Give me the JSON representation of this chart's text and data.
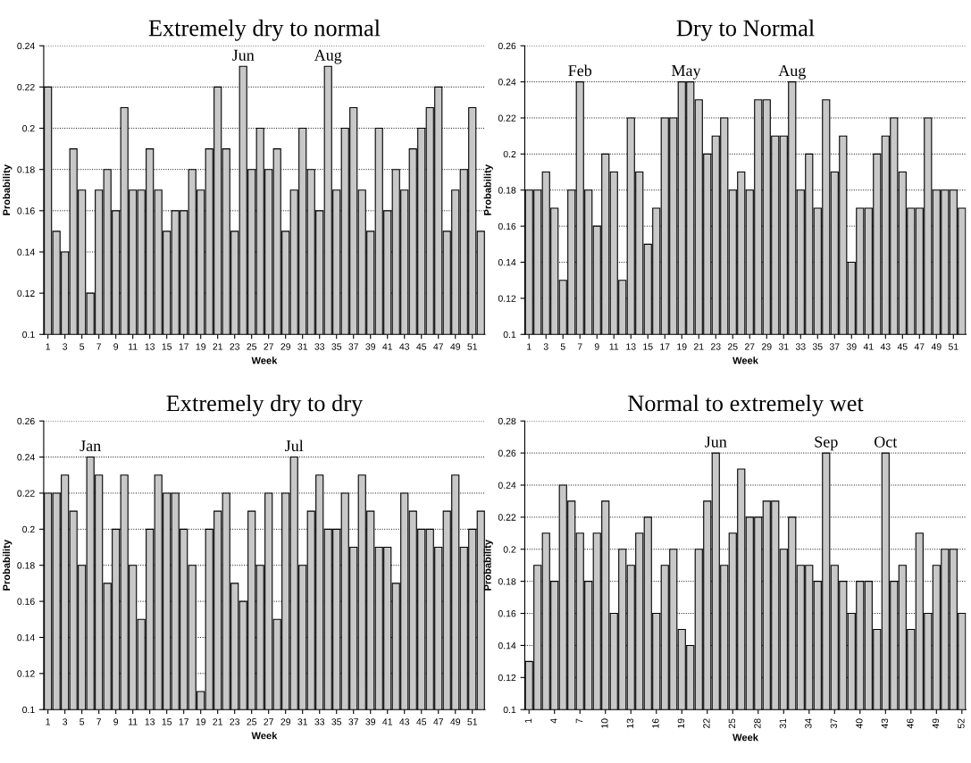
{
  "chart_data": [
    {
      "type": "bar",
      "title": "Extremely dry to normal",
      "xlabel": "Week",
      "ylabel": "Probability",
      "color": "#c8c8c8",
      "grid": "y",
      "x": [
        1,
        2,
        3,
        4,
        5,
        6,
        7,
        8,
        9,
        10,
        11,
        12,
        13,
        14,
        15,
        16,
        17,
        18,
        19,
        20,
        21,
        22,
        23,
        24,
        25,
        26,
        27,
        28,
        29,
        30,
        31,
        32,
        33,
        34,
        35,
        36,
        37,
        38,
        39,
        40,
        41,
        42,
        43,
        44,
        45,
        46,
        47,
        48,
        49,
        50,
        51,
        52
      ],
      "values": [
        0.22,
        0.15,
        0.14,
        0.19,
        0.17,
        0.12,
        0.17,
        0.18,
        0.16,
        0.21,
        0.17,
        0.17,
        0.19,
        0.17,
        0.15,
        0.16,
        0.16,
        0.18,
        0.17,
        0.19,
        0.22,
        0.19,
        0.15,
        0.23,
        0.18,
        0.2,
        0.18,
        0.19,
        0.15,
        0.17,
        0.2,
        0.18,
        0.16,
        0.23,
        0.17,
        0.2,
        0.21,
        0.17,
        0.15,
        0.2,
        0.16,
        0.18,
        0.17,
        0.19,
        0.2,
        0.21,
        0.22,
        0.15,
        0.17,
        0.18,
        0.21,
        0.15
      ],
      "xlim": [
        0.5,
        52.5
      ],
      "xticks": [
        1,
        3,
        5,
        7,
        9,
        11,
        13,
        15,
        17,
        19,
        21,
        23,
        25,
        27,
        29,
        31,
        33,
        35,
        37,
        39,
        41,
        43,
        45,
        47,
        49,
        51
      ],
      "ylim": [
        0.1,
        0.24
      ],
      "yticks": [
        0.1,
        0.12,
        0.14,
        0.16,
        0.18,
        0.2,
        0.22,
        0.24
      ],
      "annotations": [
        {
          "text": "Jun",
          "x": 24,
          "y": 0.23
        },
        {
          "text": "Aug",
          "x": 34,
          "y": 0.23
        }
      ]
    },
    {
      "type": "bar",
      "title": "Dry to Normal",
      "xlabel": "Week",
      "ylabel": "Probability",
      "color": "#c8c8c8",
      "grid": "y",
      "x": [
        1,
        2,
        3,
        4,
        5,
        6,
        7,
        8,
        9,
        10,
        11,
        12,
        13,
        14,
        15,
        16,
        17,
        18,
        19,
        20,
        21,
        22,
        23,
        24,
        25,
        26,
        27,
        28,
        29,
        30,
        31,
        32,
        33,
        34,
        35,
        36,
        37,
        38,
        39,
        40,
        41,
        42,
        43,
        44,
        45,
        46,
        47,
        48,
        49,
        50,
        51,
        52
      ],
      "values": [
        0.18,
        0.18,
        0.19,
        0.17,
        0.13,
        0.18,
        0.24,
        0.18,
        0.16,
        0.2,
        0.19,
        0.13,
        0.22,
        0.19,
        0.15,
        0.17,
        0.22,
        0.22,
        0.24,
        0.24,
        0.23,
        0.2,
        0.21,
        0.22,
        0.18,
        0.19,
        0.18,
        0.23,
        0.23,
        0.21,
        0.21,
        0.24,
        0.18,
        0.2,
        0.17,
        0.23,
        0.19,
        0.21,
        0.14,
        0.17,
        0.17,
        0.2,
        0.21,
        0.22,
        0.19,
        0.17,
        0.17,
        0.22,
        0.18,
        0.18,
        0.18,
        0.17
      ],
      "xlim": [
        0.5,
        52.5
      ],
      "xticks": [
        1,
        3,
        5,
        7,
        9,
        11,
        13,
        15,
        17,
        19,
        21,
        23,
        25,
        27,
        29,
        31,
        33,
        35,
        37,
        39,
        41,
        43,
        45,
        47,
        49,
        51
      ],
      "ylim": [
        0.1,
        0.26
      ],
      "yticks": [
        0.1,
        0.12,
        0.14,
        0.16,
        0.18,
        0.2,
        0.22,
        0.24,
        0.26
      ],
      "annotations": [
        {
          "text": "Feb",
          "x": 7,
          "y": 0.24
        },
        {
          "text": "May",
          "x": 19.5,
          "y": 0.24
        },
        {
          "text": "Aug",
          "x": 32,
          "y": 0.24
        }
      ]
    },
    {
      "type": "bar",
      "title": "Extremely dry to dry",
      "xlabel": "Week",
      "ylabel": "Probability",
      "color": "#c8c8c8",
      "grid": "y",
      "x": [
        1,
        2,
        3,
        4,
        5,
        6,
        7,
        8,
        9,
        10,
        11,
        12,
        13,
        14,
        15,
        16,
        17,
        18,
        19,
        20,
        21,
        22,
        23,
        24,
        25,
        26,
        27,
        28,
        29,
        30,
        31,
        32,
        33,
        34,
        35,
        36,
        37,
        38,
        39,
        40,
        41,
        42,
        43,
        44,
        45,
        46,
        47,
        48,
        49,
        50,
        51,
        52
      ],
      "values": [
        0.22,
        0.22,
        0.23,
        0.21,
        0.18,
        0.24,
        0.23,
        0.17,
        0.2,
        0.23,
        0.18,
        0.15,
        0.2,
        0.23,
        0.22,
        0.22,
        0.2,
        0.18,
        0.11,
        0.2,
        0.21,
        0.22,
        0.17,
        0.16,
        0.21,
        0.18,
        0.22,
        0.15,
        0.22,
        0.24,
        0.18,
        0.21,
        0.23,
        0.2,
        0.2,
        0.22,
        0.19,
        0.23,
        0.21,
        0.19,
        0.19,
        0.17,
        0.22,
        0.21,
        0.2,
        0.2,
        0.19,
        0.21,
        0.23,
        0.19,
        0.2,
        0.21
      ],
      "xlim": [
        0.5,
        52.5
      ],
      "xticks": [
        1,
        3,
        5,
        7,
        9,
        11,
        13,
        15,
        17,
        19,
        21,
        23,
        25,
        27,
        29,
        31,
        33,
        35,
        37,
        39,
        41,
        43,
        45,
        47,
        49,
        51
      ],
      "ylim": [
        0.1,
        0.26
      ],
      "yticks": [
        0.1,
        0.12,
        0.14,
        0.16,
        0.18,
        0.2,
        0.22,
        0.24,
        0.26
      ],
      "annotations": [
        {
          "text": "Jan",
          "x": 6,
          "y": 0.24
        },
        {
          "text": "Jul",
          "x": 30,
          "y": 0.24
        }
      ]
    },
    {
      "type": "bar",
      "title": "Normal to extremely wet",
      "xlabel": "Week",
      "ylabel": "Probability",
      "color": "#c8c8c8",
      "grid": "y",
      "x": [
        1,
        2,
        3,
        4,
        5,
        6,
        7,
        8,
        9,
        10,
        11,
        12,
        13,
        14,
        15,
        16,
        17,
        18,
        19,
        20,
        21,
        22,
        23,
        24,
        25,
        26,
        27,
        28,
        29,
        30,
        31,
        32,
        33,
        34,
        35,
        36,
        37,
        38,
        39,
        40,
        41,
        42,
        43,
        44,
        45,
        46,
        47,
        48,
        49,
        50,
        51,
        52
      ],
      "values": [
        0.13,
        0.19,
        0.21,
        0.18,
        0.24,
        0.23,
        0.21,
        0.18,
        0.21,
        0.23,
        0.16,
        0.2,
        0.19,
        0.21,
        0.22,
        0.16,
        0.19,
        0.2,
        0.15,
        0.14,
        0.2,
        0.23,
        0.26,
        0.19,
        0.21,
        0.25,
        0.22,
        0.22,
        0.23,
        0.23,
        0.2,
        0.22,
        0.19,
        0.19,
        0.18,
        0.26,
        0.19,
        0.18,
        0.16,
        0.18,
        0.18,
        0.15,
        0.26,
        0.18,
        0.19,
        0.15,
        0.21,
        0.16,
        0.19,
        0.2,
        0.2,
        0.16
      ],
      "xlim": [
        0.5,
        52.5
      ],
      "xticks": [
        1,
        4,
        7,
        10,
        13,
        16,
        19,
        22,
        25,
        28,
        31,
        34,
        37,
        40,
        43,
        46,
        49,
        52
      ],
      "ylim": [
        0.1,
        0.28
      ],
      "yticks": [
        0.1,
        0.12,
        0.14,
        0.16,
        0.18,
        0.2,
        0.22,
        0.24,
        0.26,
        0.28
      ],
      "annotations": [
        {
          "text": "Jun",
          "x": 23,
          "y": 0.26
        },
        {
          "text": "Sep",
          "x": 36,
          "y": 0.26
        },
        {
          "text": "Oct",
          "x": 43,
          "y": 0.26
        }
      ]
    }
  ]
}
